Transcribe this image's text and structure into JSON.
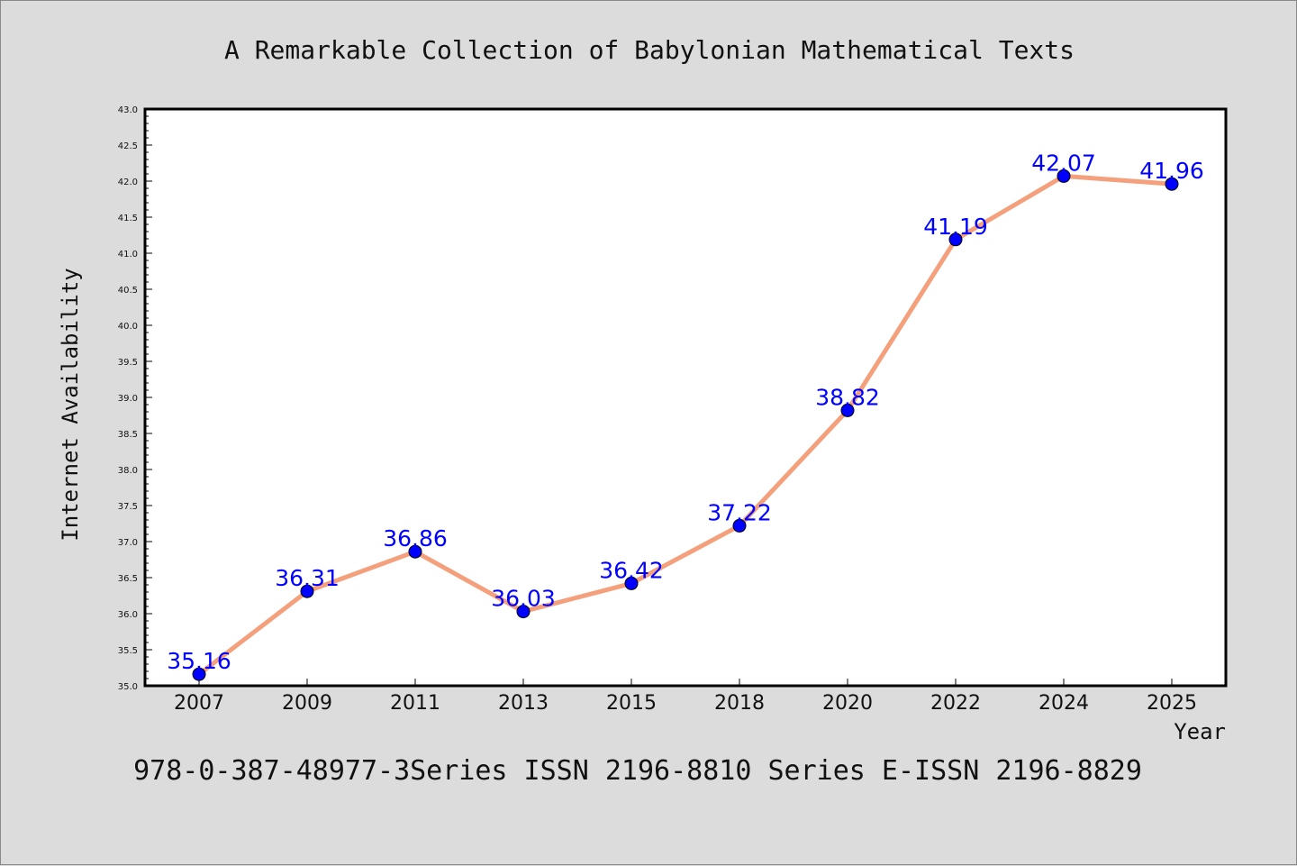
{
  "chart_data": {
    "type": "line",
    "title": "A Remarkable Collection of Babylonian Mathematical Texts",
    "xlabel": "Year",
    "ylabel": "Internet Availability",
    "categories": [
      "2007",
      "2009",
      "2011",
      "2013",
      "2015",
      "2018",
      "2020",
      "2022",
      "2024",
      "2025"
    ],
    "series": [
      {
        "values": [
          35.16,
          36.31,
          36.86,
          36.03,
          36.42,
          37.22,
          38.82,
          41.19,
          42.07,
          41.96
        ],
        "data_labels": [
          "35.16",
          "36.31",
          "36.86",
          "36.03",
          "36.42",
          "37.22",
          "38.82",
          "41.19",
          "42.07",
          "41.96"
        ]
      }
    ],
    "ylim": [
      35.0,
      43.0
    ],
    "yticks": [
      "35.0",
      "35.5",
      "36.0",
      "36.5",
      "37.0",
      "37.5",
      "38.0",
      "38.5",
      "39.0",
      "39.5",
      "40.0",
      "40.5",
      "41.0",
      "41.5",
      "42.0",
      "42.5",
      "43.0"
    ],
    "grid": false,
    "legend": "none",
    "colors": {
      "line": "#f4a07c",
      "marker": "#0000ff",
      "label": "#0000ff",
      "background": "#dcdcdc",
      "plot_bg": "#ffffff"
    }
  },
  "footer_text": "978-0-387-48977-3Series ISSN 2196-8810 Series E-ISSN 2196-8829"
}
